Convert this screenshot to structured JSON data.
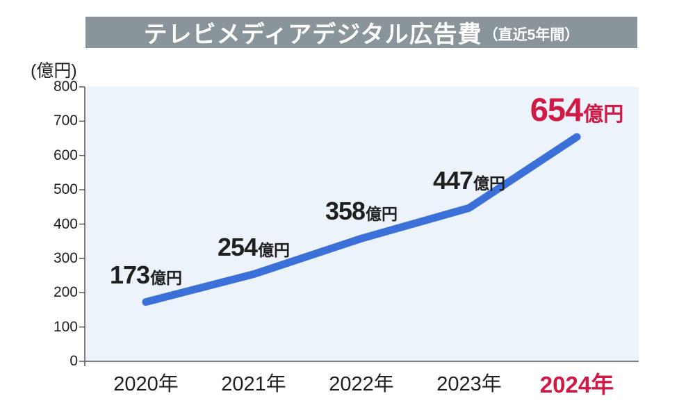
{
  "header": {
    "title_main": "テレビメディアデジタル広告費",
    "title_sub": "（直近5年間）"
  },
  "axis_unit_label": "(億円)",
  "chart_data": {
    "type": "line",
    "title": "テレビメディアデジタル広告費（直近5年間）",
    "categories": [
      "2020年",
      "2021年",
      "2022年",
      "2023年",
      "2024年"
    ],
    "values": [
      173,
      254,
      358,
      447,
      654
    ],
    "value_unit": "億円",
    "xlabel": "",
    "ylabel": "(億円)",
    "ylim": [
      0,
      800
    ],
    "yticks": [
      0,
      100,
      200,
      300,
      400,
      500,
      600,
      700,
      800
    ],
    "grid": false,
    "legend": "none",
    "highlight_index": 4,
    "highlighted_category": "2024年",
    "colors": {
      "line": "#3a70d8",
      "highlight": "#d01945",
      "plot_background": "#ecf3fb",
      "header_background": "#8a949b",
      "header_text": "#ffffff",
      "text": "#1f1f1f",
      "axis": "#555555"
    }
  }
}
